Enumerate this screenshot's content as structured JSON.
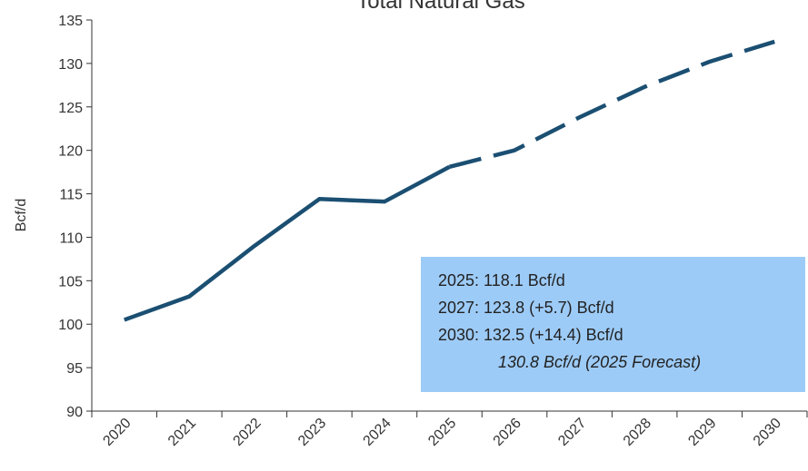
{
  "chart_data": {
    "type": "line",
    "title": "Total Natural Gas",
    "ylabel": "Bcf/d",
    "categories": [
      "2020",
      "2021",
      "2022",
      "2023",
      "2024",
      "2025",
      "2026",
      "2027",
      "2028",
      "2029",
      "2030"
    ],
    "series": [
      {
        "color": "#1b4f72",
        "dashed": false,
        "values": [
          100.5,
          103.2,
          109.0,
          114.4,
          114.1,
          118.1,
          null,
          null,
          null,
          null,
          null
        ]
      },
      {
        "color": "#1b4f72",
        "dashed": true,
        "values": [
          null,
          null,
          null,
          null,
          null,
          118.1,
          120.0,
          123.8,
          127.3,
          130.2,
          132.5
        ]
      }
    ],
    "ylim": [
      90,
      135
    ],
    "yticks": [
      90,
      95,
      100,
      105,
      110,
      115,
      120,
      125,
      130,
      135
    ],
    "grid": false,
    "annotation": {
      "color": "#9dcbf7",
      "lines": [
        "2025: 118.1 Bcf/d",
        "2027: 123.8 (+5.7) Bcf/d",
        "2030: 132.5  (+14.4) Bcf/d",
        "130.8 Bcf/d (2025 Forecast)"
      ]
    }
  }
}
